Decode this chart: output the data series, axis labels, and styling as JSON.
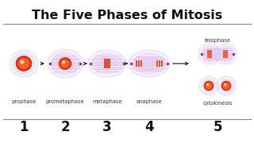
{
  "title": "The Five Phases of Mitosis",
  "title_fontsize": 11.5,
  "title_fontweight": "bold",
  "background_color": "#ffffff",
  "phases": [
    "prophase",
    "prometaphase",
    "metaphase",
    "anaphase"
  ],
  "phase5_top": "telophase",
  "phase5_bot": "cytokinesis",
  "numbers": [
    "1",
    "2",
    "3",
    "4",
    "5"
  ],
  "cell_outer": "#e8d0f0",
  "cell_edge": "#c8a0d8",
  "nucleus_orange": "#f06030",
  "nucleus_red": "#d03010",
  "arrow_color": "#222222",
  "number_color": "#111111",
  "separator_color": "#888888",
  "spindle_color": "#d0a8e0",
  "pole_dot_color": "#7040a0",
  "chrom_color": "#e05030",
  "label_fontsize": 4.8,
  "num_fontsize": 12
}
